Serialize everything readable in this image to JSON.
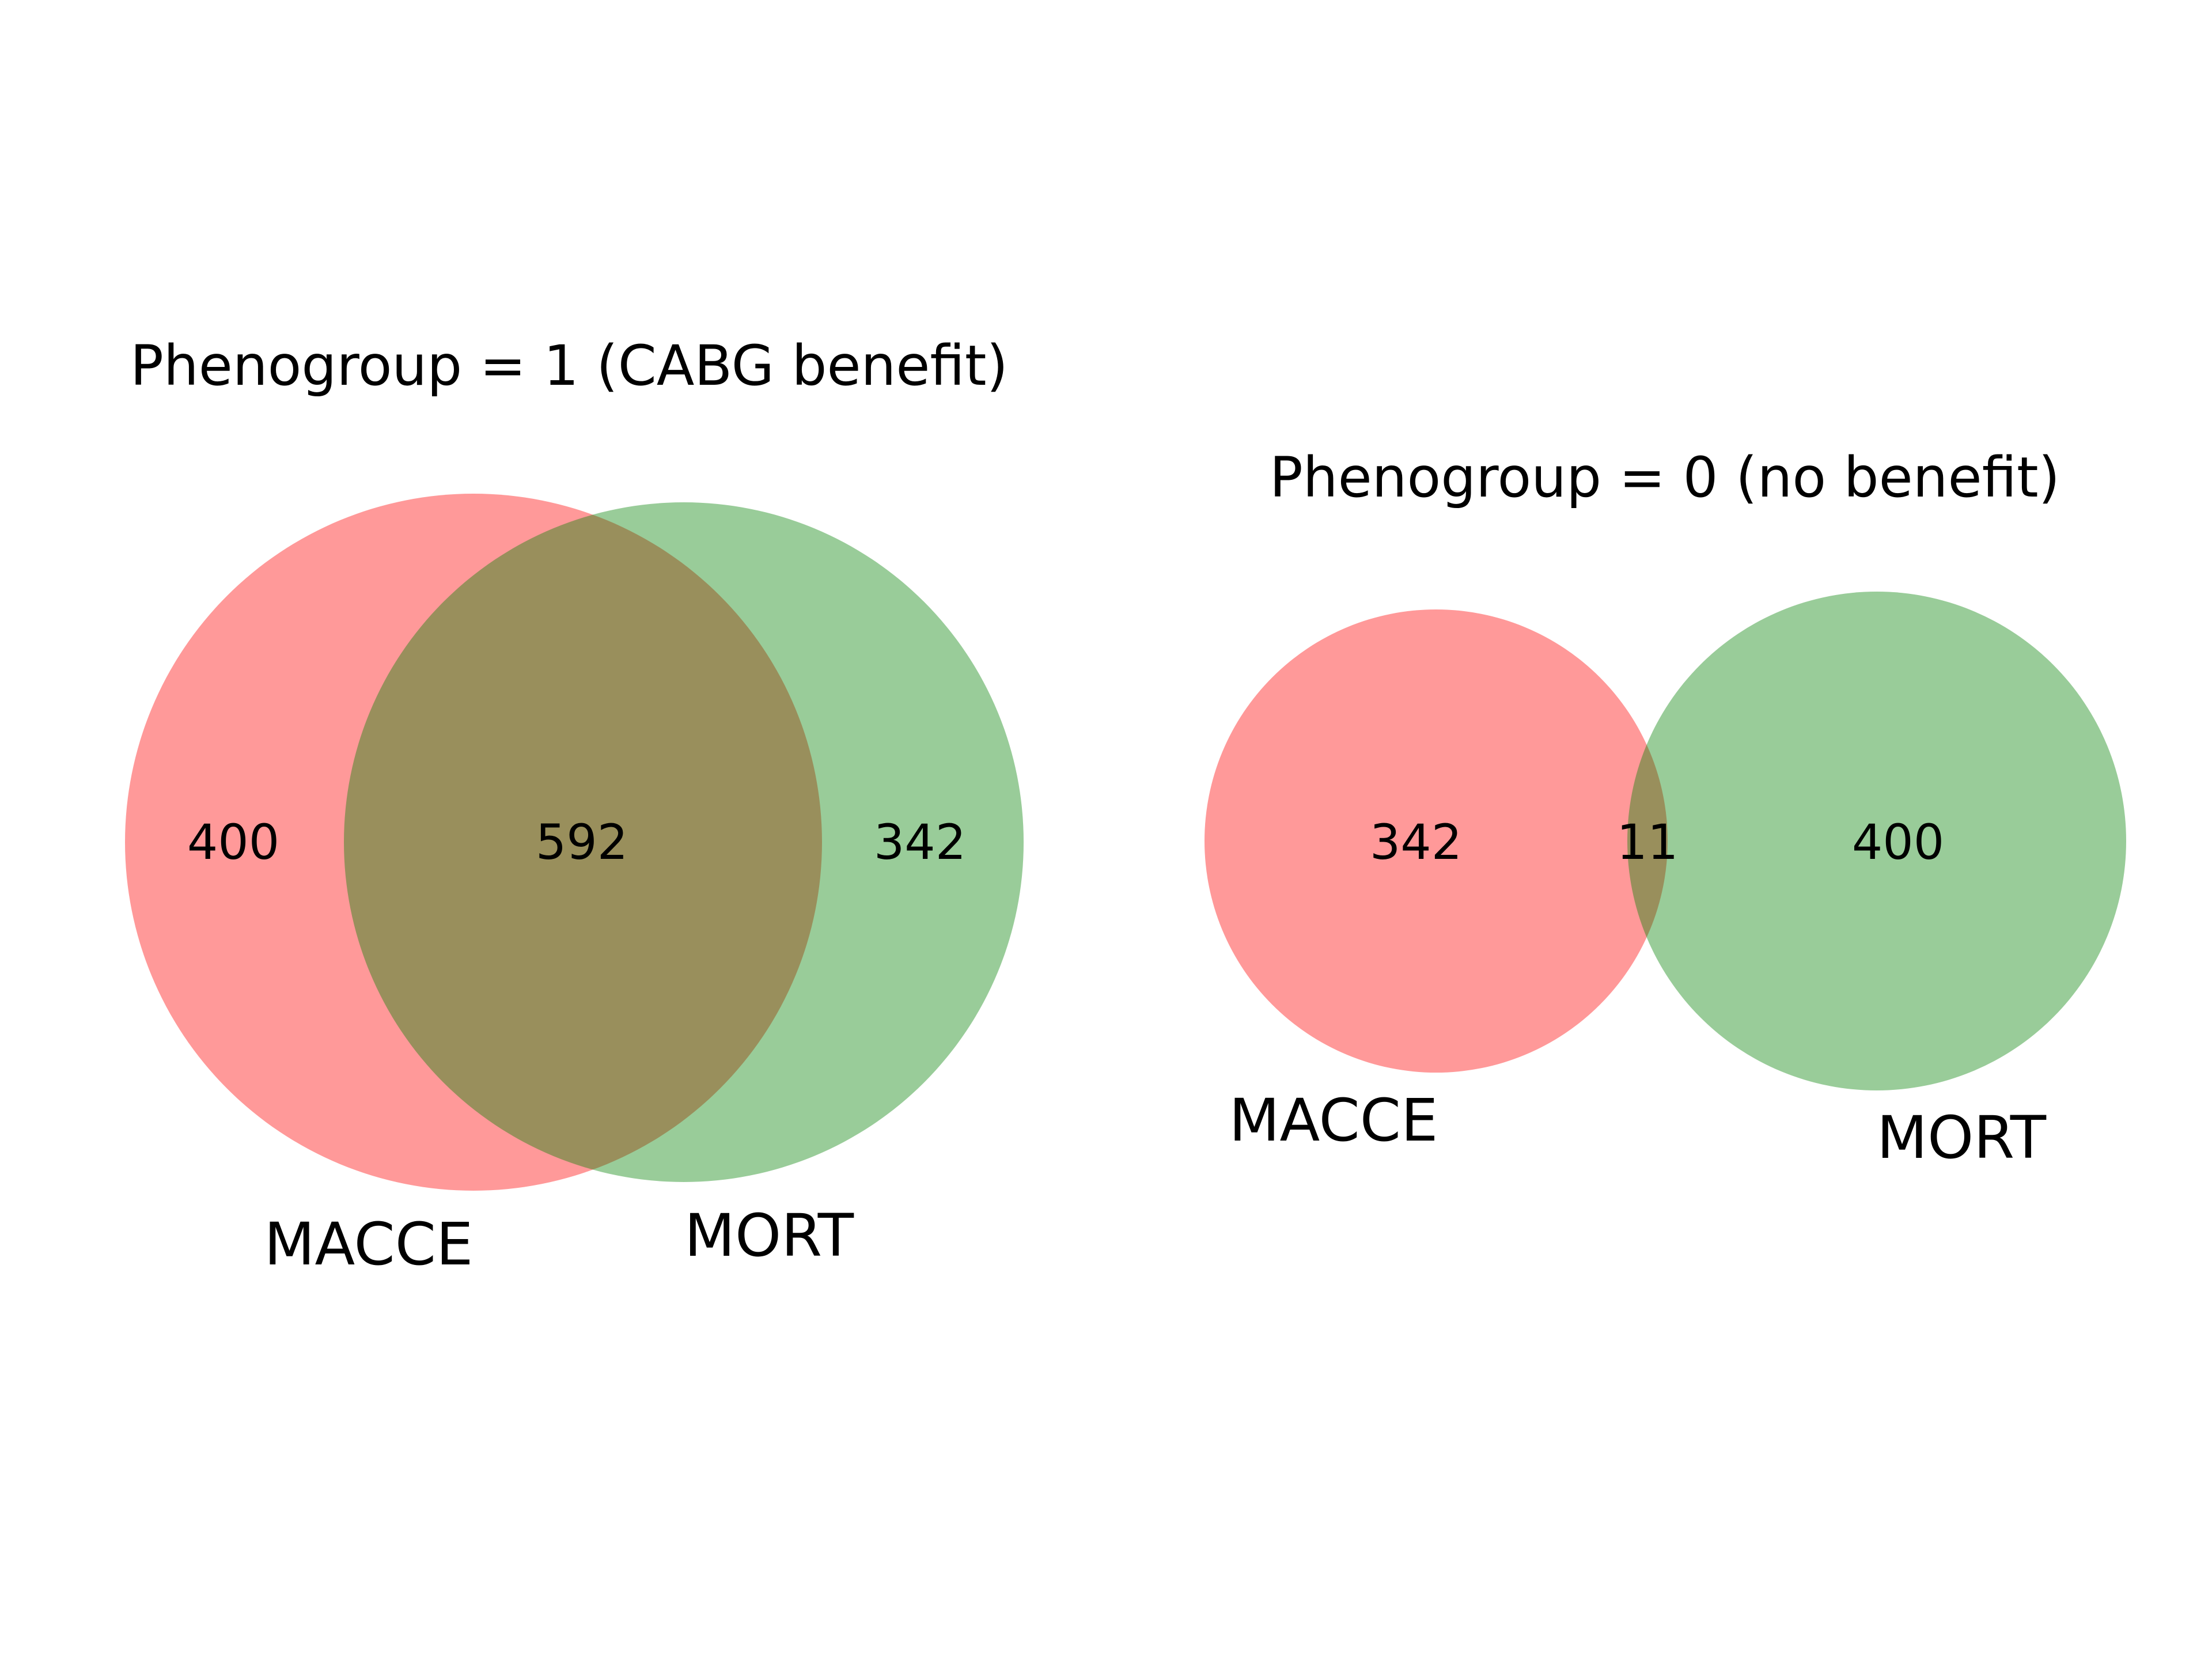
{
  "colors": {
    "set_a": "#ff0000",
    "set_b": "#008000",
    "overlap": "#c2a070",
    "background": "#ffffff",
    "text": "#000000"
  },
  "panels": [
    {
      "title": "Phenogroup = 1 (CABG benefit)",
      "sets": [
        "MACCE",
        "MORT"
      ],
      "counts": {
        "only_a": "400",
        "both": "592",
        "only_b": "342"
      }
    },
    {
      "title": "Phenogroup = 0 (no benefit)",
      "sets": [
        "MACCE",
        "MORT"
      ],
      "counts": {
        "only_a": "342",
        "both": "11",
        "only_b": "400"
      }
    }
  ]
}
